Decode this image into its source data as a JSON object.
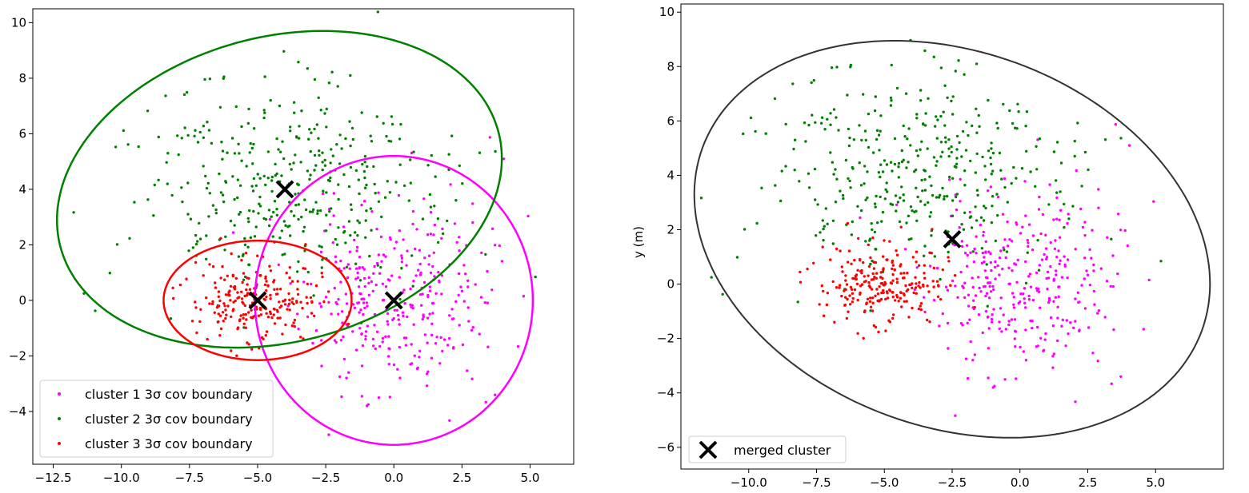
{
  "chart_data": [
    {
      "type": "scatter",
      "title": "",
      "xlabel": "",
      "ylabel": "",
      "xlim": [
        -13.25,
        6.6
      ],
      "ylim": [
        -5.9,
        10.5
      ],
      "xticks": [
        -12.5,
        -10.0,
        -7.5,
        -5.0,
        -2.5,
        0.0,
        2.5,
        5.0
      ],
      "xtick_labels": [
        "−12.5",
        "−10.0",
        "−7.5",
        "−5.0",
        "−2.5",
        "0.0",
        "2.5",
        "5.0"
      ],
      "yticks": [
        -4,
        -2,
        0,
        2,
        4,
        6,
        8,
        10
      ],
      "ytick_labels": [
        "−4",
        "−2",
        "0",
        "2",
        "4",
        "6",
        "8",
        "10"
      ],
      "grid": false,
      "legend_position": "lower-left",
      "legend": [
        {
          "text": "cluster 1 3σ cov boundary",
          "color": "#ff00ff"
        },
        {
          "text": "cluster 2 3σ cov boundary",
          "color": "#008000"
        },
        {
          "text": "cluster 3 3σ cov boundary",
          "color": "#ff0000"
        }
      ],
      "series": [
        {
          "legend_text": "cluster 1 3σ cov boundary",
          "color": "#ff00ff",
          "center": [
            0.0,
            0.0
          ],
          "std": [
            1.7,
            1.7
          ],
          "n": 330,
          "seed": 11,
          "boundary": {
            "center": [
              0.0,
              0.0
            ],
            "rx": 5.1,
            "ry": 5.2,
            "angle_deg": 0
          }
        },
        {
          "legend_text": "cluster 2 3σ cov boundary",
          "color": "#008000",
          "center": [
            -4.0,
            4.0
          ],
          "std": [
            2.7,
            1.95
          ],
          "n": 380,
          "seed": 23,
          "boundary": {
            "center": [
              -4.2,
              4.0
            ],
            "rx": 8.3,
            "ry": 5.5,
            "angle_deg": 14
          }
        },
        {
          "legend_text": "cluster 3 3σ cov boundary",
          "color": "#ff0000",
          "center": [
            -5.0,
            0.0
          ],
          "std": [
            1.15,
            0.72
          ],
          "n": 230,
          "seed": 37,
          "boundary": {
            "center": [
              -5.0,
              0.0
            ],
            "rx": 3.45,
            "ry": 2.15,
            "angle_deg": 0
          }
        }
      ],
      "centroids": [
        [
          0.0,
          0.0
        ],
        [
          -4.0,
          4.0
        ],
        [
          -5.0,
          0.0
        ]
      ],
      "centroid_marker": "X",
      "centroid_color": "#000000"
    },
    {
      "type": "scatter",
      "title": "",
      "xlabel": "",
      "ylabel": "y (m)",
      "xlim": [
        -12.5,
        7.5
      ],
      "ylim": [
        -6.8,
        10.3
      ],
      "xticks": [
        -10.0,
        -7.5,
        -5.0,
        -2.5,
        0.0,
        2.5,
        5.0
      ],
      "xtick_labels": [
        "−10.0",
        "−7.5",
        "−5.0",
        "−2.5",
        "0.0",
        "2.5",
        "5.0"
      ],
      "yticks": [
        -6,
        -4,
        -2,
        0,
        2,
        4,
        6,
        8,
        10
      ],
      "ytick_labels": [
        "−6",
        "−4",
        "−2",
        "0",
        "2",
        "4",
        "6",
        "8",
        "10"
      ],
      "grid": false,
      "legend_position": "lower-left",
      "legend": [
        {
          "text": "merged cluster",
          "marker": "X",
          "color": "#000000"
        }
      ],
      "series": [
        {
          "color": "#ff00ff",
          "center": [
            0.0,
            0.0
          ],
          "std": [
            1.7,
            1.7
          ],
          "n": 330,
          "seed": 11
        },
        {
          "color": "#008000",
          "center": [
            -4.0,
            4.0
          ],
          "std": [
            2.7,
            1.95
          ],
          "n": 380,
          "seed": 23
        },
        {
          "color": "#ff0000",
          "center": [
            -5.0,
            0.0
          ],
          "std": [
            1.15,
            0.72
          ],
          "n": 230,
          "seed": 37
        }
      ],
      "merged_centroid": [
        -2.5,
        1.65
      ],
      "merged_boundary": {
        "center": [
          -2.5,
          1.65
        ],
        "rx": 9.8,
        "ry": 6.9,
        "angle_deg": -20,
        "color": "#333333"
      }
    }
  ]
}
